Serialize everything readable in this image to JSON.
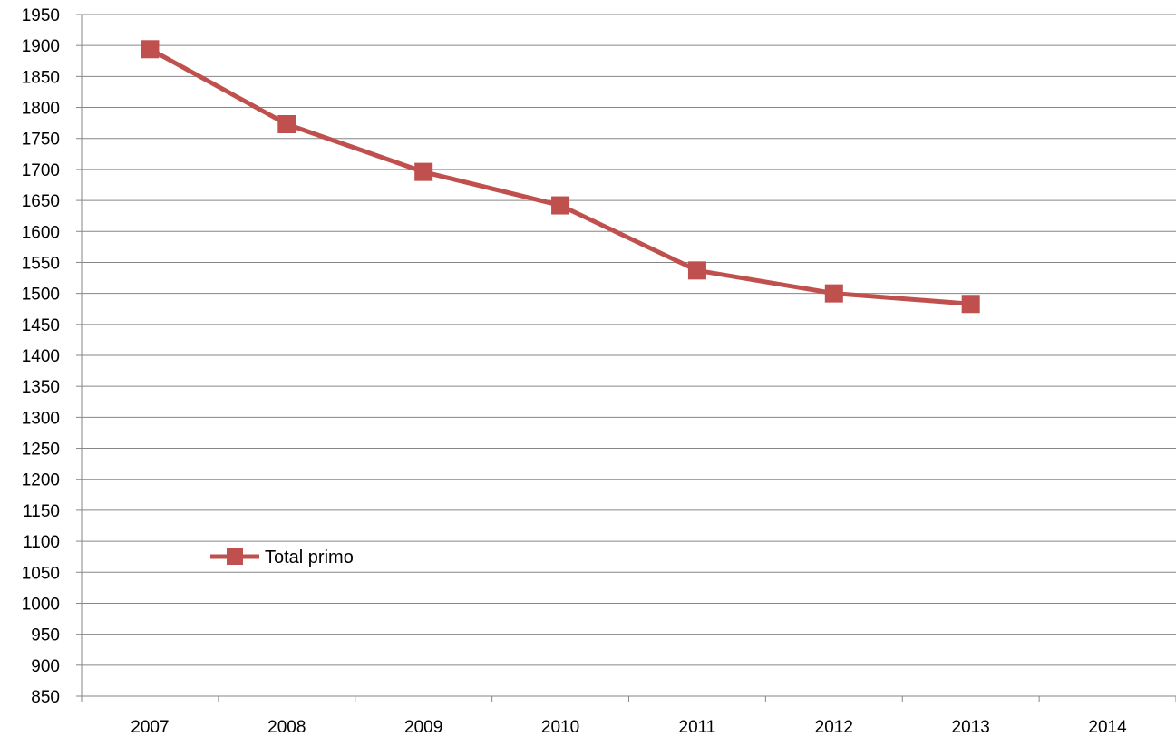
{
  "chart_data": {
    "type": "line",
    "categories": [
      "2007",
      "2008",
      "2009",
      "2010",
      "2011",
      "2012",
      "2013",
      "2014"
    ],
    "series": [
      {
        "name": "Total primo",
        "color": "#C0504D",
        "marker": "square",
        "values": [
          1894,
          1773,
          1696,
          1642,
          1537,
          1500,
          1483,
          null
        ]
      }
    ],
    "title": "",
    "xlabel": "",
    "ylabel": "",
    "ylim": [
      850,
      1950
    ],
    "yticks": [
      850,
      900,
      950,
      1000,
      1050,
      1100,
      1150,
      1200,
      1250,
      1300,
      1350,
      1400,
      1450,
      1500,
      1550,
      1600,
      1650,
      1700,
      1750,
      1800,
      1850,
      1900,
      1950
    ],
    "grid": true,
    "grid_color": "#868686",
    "legend_position": "bottom-left, inside plot"
  }
}
